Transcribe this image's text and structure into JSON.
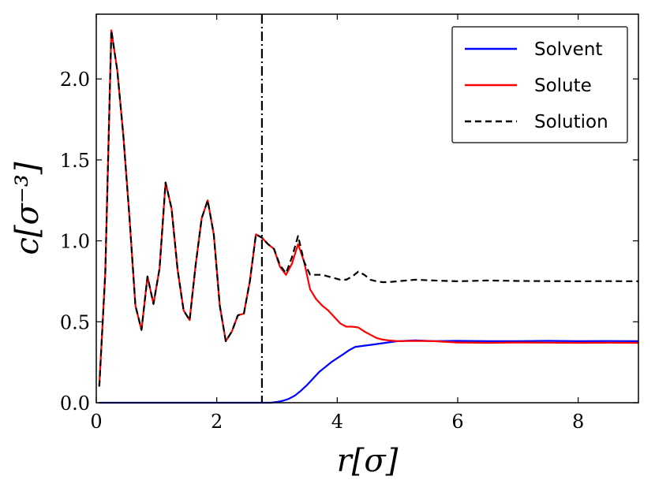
{
  "chart_data": {
    "type": "line",
    "title": "",
    "xlabel": "r[σ]",
    "ylabel": "c[σ⁻³]",
    "xlim": [
      0,
      9
    ],
    "ylim": [
      0,
      2.4
    ],
    "xticks": [
      "0",
      "2",
      "4",
      "6",
      "8"
    ],
    "yticks": [
      "0.0",
      "0.5",
      "1.0",
      "1.5",
      "2.0"
    ],
    "grid": false,
    "legend_position": "top-right",
    "vline_x": 2.75,
    "series": [
      {
        "name": "Solvent",
        "color": "#0000ff",
        "style": "solid",
        "x": [
          0.05,
          1.0,
          2.0,
          2.75,
          2.9,
          3.0,
          3.1,
          3.2,
          3.3,
          3.4,
          3.5,
          3.6,
          3.7,
          3.8,
          3.9,
          4.0,
          4.1,
          4.2,
          4.3,
          4.4,
          4.5,
          4.6,
          4.8,
          5.0,
          5.3,
          5.6,
          6.0,
          6.5,
          7.0,
          7.5,
          8.0,
          8.5,
          9.0
        ],
        "y": [
          0.0,
          0.0,
          0.0,
          0.0,
          0.0,
          0.005,
          0.012,
          0.025,
          0.045,
          0.075,
          0.11,
          0.15,
          0.19,
          0.22,
          0.25,
          0.275,
          0.3,
          0.325,
          0.345,
          0.35,
          0.355,
          0.36,
          0.37,
          0.38,
          0.385,
          0.38,
          0.382,
          0.38,
          0.38,
          0.382,
          0.38,
          0.381,
          0.38
        ]
      },
      {
        "name": "Solute",
        "color": "#ff0000",
        "style": "solid",
        "x": [
          0.05,
          0.15,
          0.25,
          0.35,
          0.45,
          0.55,
          0.65,
          0.75,
          0.85,
          0.95,
          1.05,
          1.15,
          1.25,
          1.35,
          1.45,
          1.55,
          1.65,
          1.75,
          1.85,
          1.95,
          2.05,
          2.15,
          2.25,
          2.35,
          2.45,
          2.55,
          2.65,
          2.75,
          2.85,
          2.95,
          3.05,
          3.15,
          3.25,
          3.35,
          3.45,
          3.55,
          3.65,
          3.75,
          3.85,
          3.95,
          4.05,
          4.15,
          4.25,
          4.35,
          4.45,
          4.55,
          4.65,
          4.75,
          4.85,
          5.0,
          5.3,
          5.6,
          6.0,
          6.5,
          7.0,
          7.5,
          8.0,
          8.5,
          9.0
        ],
        "y": [
          0.1,
          0.8,
          2.3,
          2.05,
          1.65,
          1.15,
          0.6,
          0.45,
          0.78,
          0.61,
          0.83,
          1.36,
          1.2,
          0.82,
          0.57,
          0.51,
          0.85,
          1.14,
          1.25,
          1.04,
          0.6,
          0.38,
          0.44,
          0.54,
          0.55,
          0.75,
          1.04,
          1.02,
          0.98,
          0.95,
          0.84,
          0.79,
          0.86,
          0.98,
          0.87,
          0.7,
          0.64,
          0.6,
          0.57,
          0.53,
          0.49,
          0.47,
          0.47,
          0.465,
          0.44,
          0.42,
          0.4,
          0.39,
          0.385,
          0.38,
          0.382,
          0.38,
          0.372,
          0.37,
          0.372,
          0.371,
          0.37,
          0.371,
          0.37
        ]
      },
      {
        "name": "Solution",
        "color": "#000000",
        "style": "dashed",
        "x": [
          0.05,
          0.15,
          0.25,
          0.35,
          0.45,
          0.55,
          0.65,
          0.75,
          0.85,
          0.95,
          1.05,
          1.15,
          1.25,
          1.35,
          1.45,
          1.55,
          1.65,
          1.75,
          1.85,
          1.95,
          2.05,
          2.15,
          2.25,
          2.35,
          2.45,
          2.55,
          2.65,
          2.75,
          2.85,
          2.95,
          3.05,
          3.15,
          3.25,
          3.35,
          3.45,
          3.55,
          3.65,
          3.75,
          3.85,
          3.95,
          4.05,
          4.15,
          4.25,
          4.35,
          4.45,
          4.55,
          4.65,
          4.75,
          4.85,
          5.0,
          5.3,
          5.6,
          6.0,
          6.5,
          7.0,
          7.5,
          8.0,
          8.5,
          9.0
        ],
        "y": [
          0.1,
          0.8,
          2.3,
          2.05,
          1.65,
          1.15,
          0.6,
          0.45,
          0.78,
          0.61,
          0.83,
          1.36,
          1.2,
          0.82,
          0.57,
          0.51,
          0.85,
          1.14,
          1.25,
          1.04,
          0.6,
          0.38,
          0.44,
          0.54,
          0.55,
          0.75,
          1.04,
          1.02,
          0.98,
          0.95,
          0.85,
          0.8,
          0.9,
          1.03,
          0.87,
          0.79,
          0.79,
          0.79,
          0.78,
          0.77,
          0.76,
          0.76,
          0.78,
          0.81,
          0.79,
          0.76,
          0.75,
          0.745,
          0.745,
          0.75,
          0.76,
          0.755,
          0.75,
          0.755,
          0.752,
          0.751,
          0.75,
          0.751,
          0.75
        ]
      }
    ]
  }
}
